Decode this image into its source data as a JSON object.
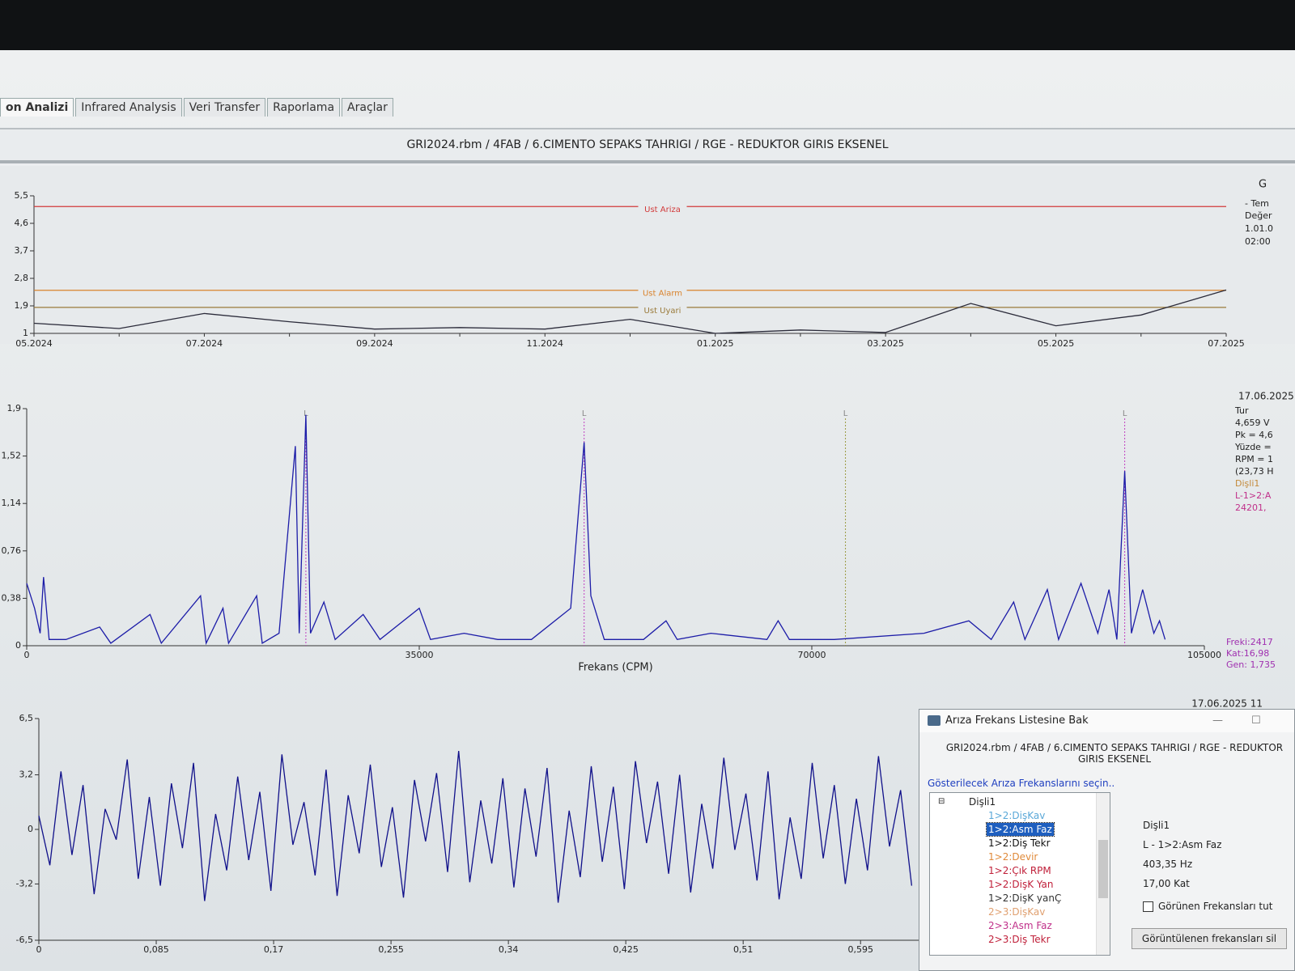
{
  "tabs": [
    "on Analizi",
    "Infrared Analysis",
    "Veri Transfer",
    "Raporlama",
    "Araçlar"
  ],
  "header": {
    "title": "GRI2024.rbm / 4FAB / 6.CIMENTO SEPAKS TAHRIGI / RGE - REDUKTOR GIRIS EKSENEL"
  },
  "chart_data": [
    {
      "type": "line",
      "categories": [
        "05.2024",
        null,
        "07.2024",
        null,
        "09.2024",
        null,
        "11.2024",
        null,
        "01.2025",
        null,
        "03.2025",
        null,
        "05.2025",
        null,
        "07.2025"
      ],
      "values": [
        1.33,
        1.16,
        1.65,
        1.38,
        1.14,
        1.19,
        1.14,
        1.46,
        1.0,
        1.11,
        1.03,
        1.98,
        1.25,
        1.6,
        2.42
      ],
      "color": "#2b2b3a",
      "ylim": [
        1,
        5.5
      ],
      "yticks": [
        {
          "value": 5.5,
          "label": "5,5"
        },
        {
          "value": 4.6,
          "label": "4,6"
        },
        {
          "value": 3.7,
          "label": "3,7"
        },
        {
          "value": 2.8,
          "label": "2,8"
        },
        {
          "value": 1.9,
          "label": "1,9"
        },
        1
      ],
      "thresholds": [
        {
          "label": "Ust Ariza",
          "value": 5.15,
          "color": "#d23a3a"
        },
        {
          "label": "Ust Alarm",
          "value": 2.41,
          "color": "#d9822b"
        },
        {
          "label": "Ust Uyari",
          "value": 1.85,
          "color": "#9a7a3a"
        }
      ]
    },
    {
      "type": "line",
      "x": [
        0,
        700,
        1200,
        1500,
        2000,
        3500,
        6500,
        7500,
        11000,
        12000,
        15500,
        16000,
        17500,
        18000,
        20500,
        21000,
        22500,
        23950,
        24300,
        24890,
        25300,
        26500,
        27500,
        30000,
        31500,
        35000,
        36000,
        39000,
        42000,
        45000,
        48500,
        49700,
        50300,
        51500,
        55000,
        57000,
        58000,
        61000,
        66000,
        67000,
        68000,
        72000,
        80000,
        84000,
        86000,
        88000,
        89000,
        91000,
        92000,
        94000,
        95500,
        96500,
        97200,
        97900,
        98500,
        99500,
        100500,
        101000,
        101500
      ],
      "values": [
        0.5,
        0.3,
        0.1,
        0.55,
        0.05,
        0.05,
        0.15,
        0.02,
        0.25,
        0.02,
        0.4,
        0.02,
        0.3,
        0.02,
        0.4,
        0.02,
        0.1,
        1.6,
        0.1,
        1.85,
        0.1,
        0.35,
        0.05,
        0.25,
        0.05,
        0.3,
        0.05,
        0.1,
        0.05,
        0.05,
        0.3,
        1.63,
        0.4,
        0.05,
        0.05,
        0.2,
        0.05,
        0.1,
        0.05,
        0.2,
        0.05,
        0.05,
        0.1,
        0.2,
        0.05,
        0.35,
        0.05,
        0.45,
        0.05,
        0.5,
        0.1,
        0.45,
        0.05,
        1.4,
        0.1,
        0.45,
        0.1,
        0.2,
        0.05
      ],
      "color": "#1c1ca8",
      "xlim": [
        0,
        105000
      ],
      "xticks": [
        0,
        35000,
        70000,
        105000
      ],
      "ylim": [
        0,
        1.9
      ],
      "yticks": [
        {
          "value": 1.9,
          "label": "1,9"
        },
        {
          "value": 1.52,
          "label": "1,52"
        },
        {
          "value": 1.14,
          "label": "1,14"
        },
        {
          "value": 0.76,
          "label": "0,76"
        },
        {
          "value": 0.38,
          "label": "0,38"
        },
        0
      ],
      "x_label": "Frekans (CPM)",
      "cursors": [
        {
          "x": 24890,
          "label": "L"
        },
        {
          "x": 49700,
          "label": "L"
        },
        {
          "x": 73000,
          "label": "L"
        },
        {
          "x": 97900,
          "label": "L"
        }
      ]
    },
    {
      "type": "line",
      "x": [
        0,
        0.008,
        0.016,
        0.024,
        0.032,
        0.04,
        0.048,
        0.056,
        0.064,
        0.072,
        0.08,
        0.088,
        0.096,
        0.104,
        0.112,
        0.12,
        0.128,
        0.136,
        0.144,
        0.152,
        0.16,
        0.168,
        0.176,
        0.184,
        0.192,
        0.2,
        0.208,
        0.216,
        0.224,
        0.232,
        0.24,
        0.248,
        0.256,
        0.264,
        0.272,
        0.28,
        0.288,
        0.296,
        0.304,
        0.312,
        0.32,
        0.328,
        0.336,
        0.344,
        0.352,
        0.36,
        0.368,
        0.376,
        0.384,
        0.392,
        0.4,
        0.408,
        0.416,
        0.424,
        0.432,
        0.44,
        0.448,
        0.456,
        0.464,
        0.472,
        0.48,
        0.488,
        0.496,
        0.504,
        0.512,
        0.52,
        0.528,
        0.536,
        0.544,
        0.552,
        0.56,
        0.568,
        0.576,
        0.584,
        0.592,
        0.6,
        0.608,
        0.616,
        0.624,
        0.632
      ],
      "values": [
        0.8,
        -2.1,
        3.4,
        -1.5,
        2.6,
        -3.8,
        1.2,
        -0.6,
        4.1,
        -2.9,
        1.9,
        -3.3,
        2.7,
        -1.1,
        3.9,
        -4.2,
        0.9,
        -2.4,
        3.1,
        -1.8,
        2.2,
        -3.6,
        4.4,
        -0.9,
        1.6,
        -2.7,
        3.5,
        -3.9,
        2.0,
        -1.4,
        3.8,
        -2.2,
        1.3,
        -4.0,
        2.9,
        -0.7,
        3.3,
        -2.5,
        4.6,
        -3.1,
        1.7,
        -2.0,
        3.0,
        -3.4,
        2.4,
        -1.6,
        3.6,
        -4.3,
        1.1,
        -2.8,
        3.7,
        -1.9,
        2.5,
        -3.5,
        4.0,
        -0.8,
        2.8,
        -2.6,
        3.2,
        -3.7,
        1.5,
        -2.3,
        4.2,
        -1.2,
        2.1,
        -3.0,
        3.4,
        -4.1,
        0.7,
        -2.9,
        3.9,
        -1.7,
        2.6,
        -3.2,
        1.8,
        -2.4,
        4.3,
        -1.0,
        2.3,
        -3.3
      ],
      "color": "#10108a",
      "xlim": [
        0,
        0.64
      ],
      "xticks": [
        0,
        {
          "value": 0.085,
          "label": "0,085"
        },
        {
          "value": 0.17,
          "label": "0,17"
        },
        {
          "value": 0.255,
          "label": "0,255"
        },
        {
          "value": 0.34,
          "label": "0,34"
        },
        {
          "value": 0.425,
          "label": "0,425"
        },
        {
          "value": 0.51,
          "label": "0,51"
        },
        {
          "value": 0.595,
          "label": "0,595"
        }
      ],
      "ylim": [
        -6.5,
        6.5
      ],
      "yticks": [
        {
          "value": 6.5,
          "label": "6,5"
        },
        {
          "value": 3.2,
          "label": "3,2"
        },
        0,
        {
          "value": -3.2,
          "label": "-3,2"
        },
        {
          "value": -6.5,
          "label": "-6,5"
        }
      ]
    }
  ],
  "trend_info": [
    "G",
    "- Tem",
    "Değer",
    "1.01.0",
    "02:00"
  ],
  "spectrum_info": {
    "date": "17.06.2025",
    "lines": [
      "Tur",
      "4,659 V",
      "Pk = 4,6",
      "Yüzde =",
      "RPM = 1",
      "(23,73 H",
      "Dişli1",
      "L-1>2:A",
      "24201,"
    ],
    "cursor": [
      "Freki:2417",
      "Kat:16,98",
      "Gen: 1,735"
    ]
  },
  "waveform_info": {
    "date": "17.06.2025 11"
  },
  "dialog": {
    "title": "Arıza Frekans Listesine Bak",
    "path": "GRI2024.rbm / 4FAB / 6.CIMENTO SEPAKS TAHRIGI / RGE - REDUKTOR GIRIS EKSENEL",
    "prompt": "Gösterilecek Arıza Frekanslarını seçin..",
    "tree": {
      "root": "Dişli1",
      "items": [
        "1>2:DişKav",
        "1>2:Asm Faz",
        "1>2:Diş Tekr",
        "1>2:Devir",
        "1>2:Çık RPM",
        "1>2:DişK Yan",
        "1>2:DişK yanÇ",
        "2>3:DişKav",
        "2>3:Asm Faz",
        "2>3:Diş Tekr"
      ]
    },
    "details": [
      "Dişli1",
      "L - 1>2:Asm Faz",
      "403,35 Hz",
      "17,00 Kat"
    ],
    "checkbox": "Görünen Frekansları tut",
    "button": "Görüntülenen frekansları sil"
  }
}
